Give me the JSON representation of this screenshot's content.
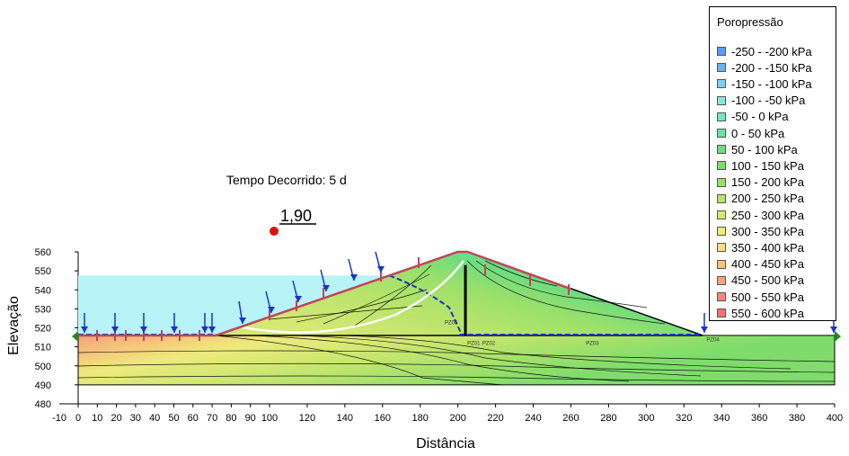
{
  "chart_data": {
    "type": "contour",
    "xlabel": "Distância",
    "ylabel": "Elevação",
    "xlim": [
      -10,
      400
    ],
    "ylim": [
      480,
      560
    ],
    "x_ticks": [
      -10,
      0,
      10,
      20,
      30,
      40,
      50,
      60,
      70,
      80,
      90,
      100,
      120,
      140,
      160,
      180,
      200,
      220,
      240,
      260,
      280,
      300,
      320,
      340,
      360,
      380,
      400
    ],
    "y_ticks": [
      480,
      490,
      500,
      510,
      520,
      530,
      540,
      550,
      560
    ],
    "annotation": "Tempo Decorrido: 5 d",
    "factor_of_safety": "1,90",
    "legend": {
      "title": "Poropressão",
      "entries": [
        {
          "label": "-250 - -200 kPa",
          "color": "#5b9bf0"
        },
        {
          "label": "-200 - -150 kPa",
          "color": "#6cb3ef"
        },
        {
          "label": "-150 - -100 kPa",
          "color": "#7fd0ef"
        },
        {
          "label": "-100 - -50 kPa",
          "color": "#85e8e0"
        },
        {
          "label": "-50 - 0 kPa",
          "color": "#74e6c2"
        },
        {
          "label": "0 - 50 kPa",
          "color": "#68e39f"
        },
        {
          "label": "50 - 100 kPa",
          "color": "#6edc7e"
        },
        {
          "label": "100 - 150 kPa",
          "color": "#7fdc6c"
        },
        {
          "label": "150 - 200 kPa",
          "color": "#9be06a"
        },
        {
          "label": "200 - 250 kPa",
          "color": "#b9e46c"
        },
        {
          "label": "250 - 300 kPa",
          "color": "#d6e874"
        },
        {
          "label": "300 - 350 kPa",
          "color": "#eeea7d"
        },
        {
          "label": "350 - 400 kPa",
          "color": "#f8dd80"
        },
        {
          "label": "400 - 450 kPa",
          "color": "#f6c27c"
        },
        {
          "label": "450 - 500 kPa",
          "color": "#f3a478"
        },
        {
          "label": "500 - 550 kPa",
          "color": "#f08a76"
        },
        {
          "label": "550 - 600 kPa",
          "color": "#ee7373"
        }
      ]
    },
    "geometry": {
      "foundation": {
        "x": [
          0,
          400
        ],
        "y": [
          490,
          516
        ]
      },
      "embankment": [
        [
          72,
          516
        ],
        [
          200,
          560
        ],
        [
          205,
          560
        ],
        [
          330,
          516
        ]
      ],
      "reservoir_level": 547.5,
      "core_wall": {
        "x": 204,
        "y": [
          516,
          553
        ]
      },
      "piezometers": [
        {
          "label": "PZ05",
          "x": 193,
          "y": 522
        },
        {
          "label": "PZ01",
          "x": 205,
          "y": 511
        },
        {
          "label": "PZ02",
          "x": 213,
          "y": 511
        },
        {
          "label": "PZ03",
          "x": 268,
          "y": 511
        },
        {
          "label": "PZ04",
          "x": 332,
          "y": 513
        }
      ]
    }
  }
}
